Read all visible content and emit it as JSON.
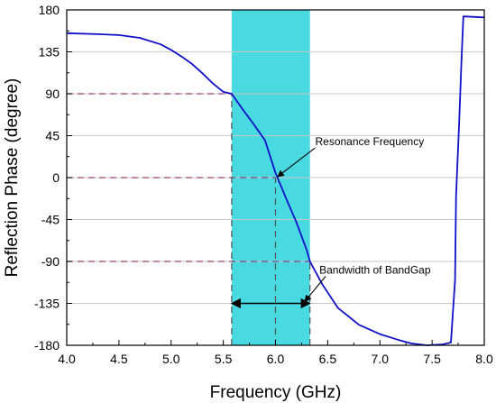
{
  "chart_data": {
    "type": "line",
    "title": "",
    "xlabel": "Frequency (GHz)",
    "ylabel": "Reflection Phase (degree)",
    "xlim": [
      4.0,
      8.0
    ],
    "ylim": [
      -180,
      180
    ],
    "xticks": [
      4.0,
      4.5,
      5.0,
      5.5,
      6.0,
      6.5,
      7.0,
      7.5,
      8.0
    ],
    "xtick_labels": [
      "4.0",
      "4.5",
      "5.0",
      "5.5",
      "6.0",
      "6.5",
      "7.0",
      "7.5",
      "8.0"
    ],
    "yticks": [
      -180,
      -135,
      -90,
      -45,
      0,
      45,
      90,
      135,
      180
    ],
    "ytick_labels": [
      "-180",
      "-135",
      "-90",
      "-45",
      "0",
      "45",
      "90",
      "135",
      "180"
    ],
    "grid": "horizontal",
    "legend": "none",
    "series": [
      {
        "color": "#1010c8",
        "x": [
          4.0,
          4.3,
          4.5,
          4.7,
          4.9,
          5.0,
          5.1,
          5.2,
          5.3,
          5.4,
          5.5,
          5.58,
          5.7,
          5.8,
          5.9,
          6.0,
          6.1,
          6.2,
          6.3,
          6.33,
          6.45,
          6.6,
          6.8,
          7.0,
          7.2,
          7.3,
          7.45,
          7.6,
          7.68,
          7.72,
          7.73,
          7.76,
          7.78,
          7.8,
          8.0
        ],
        "y": [
          155,
          154,
          153,
          150,
          143,
          137,
          130,
          122,
          112,
          101,
          92,
          90,
          71,
          56,
          40,
          5,
          -22,
          -48,
          -78,
          -90,
          -115,
          -140,
          -158,
          -168,
          -175,
          -178,
          -180,
          -179,
          -177,
          -110,
          -20,
          60,
          120,
          173,
          172
        ]
      }
    ],
    "band": {
      "x_from": 5.58,
      "x_to": 6.33,
      "color": "#49d9e0"
    },
    "reference_lines": [
      {
        "axis": "y",
        "value": 90,
        "x_to": 5.58,
        "color": "#a0407a"
      },
      {
        "axis": "y",
        "value": 0,
        "x_to": 6.0,
        "color": "#a0407a"
      },
      {
        "axis": "y",
        "value": -90,
        "x_to": 6.33,
        "color": "#a0407a"
      },
      {
        "axis": "x",
        "value": 5.58,
        "y_from": -180,
        "y_to": 90,
        "color": "#555555"
      },
      {
        "axis": "x",
        "value": 6.0,
        "y_from": -180,
        "y_to": 0,
        "color": "#555555"
      },
      {
        "axis": "x",
        "value": 6.33,
        "y_from": -180,
        "y_to": -90,
        "color": "#555555"
      }
    ],
    "bandwidth_arrow": {
      "x_from": 5.58,
      "x_to": 6.33,
      "y": -135
    },
    "annotations": [
      {
        "text": "Resonance Frequency",
        "x": 6.38,
        "y": 35,
        "arrow_from": [
          6.38,
          32
        ],
        "arrow_to": [
          6.02,
          1
        ]
      },
      {
        "text": "Bandwidth of BandGap",
        "x": 6.42,
        "y": -103,
        "arrow_from": [
          6.48,
          -106
        ],
        "arrow_to": [
          6.28,
          -133
        ]
      }
    ]
  }
}
